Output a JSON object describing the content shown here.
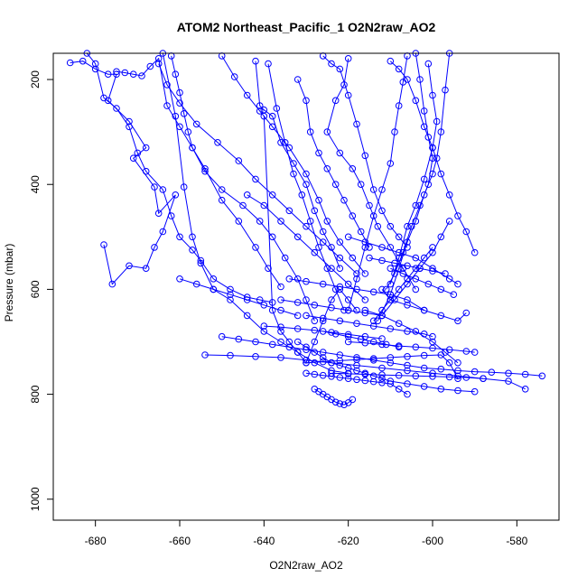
{
  "chart_data": {
    "type": "line",
    "title": "ATOM2 Northeast_Pacific_1 O2N2raw_AO2",
    "xlabel": "O2N2raw_AO2",
    "ylabel": "Pressure (mbar)",
    "xlim": [
      -690,
      -570
    ],
    "ylim": [
      1040,
      150
    ],
    "y_reversed": true,
    "grid": false,
    "x_ticks": [
      -680,
      -660,
      -640,
      -620,
      -600,
      -580
    ],
    "y_ticks": [
      200,
      400,
      600,
      800,
      1000
    ],
    "color": "#0000ff",
    "marker": "open-circle",
    "series": [
      {
        "x": [
          -686,
          -683,
          -680,
          -677,
          -675,
          -677,
          -672,
          -668,
          -671,
          -666,
          -665,
          -661,
          -664,
          -666,
          -668,
          -672,
          -676,
          -678
        ],
        "y": [
          168,
          165,
          180,
          190,
          190,
          240,
          280,
          330,
          350,
          405,
          455,
          420,
          490,
          520,
          560,
          555,
          590,
          515
        ]
      },
      {
        "x": [
          -682,
          -680,
          -678,
          -675,
          -672,
          -670,
          -668,
          -664,
          -662,
          -660,
          -657,
          -655,
          -652,
          -648,
          -644,
          -641,
          -638
        ],
        "y": [
          150,
          170,
          235,
          255,
          290,
          340,
          375,
          410,
          460,
          500,
          525,
          545,
          580,
          600,
          615,
          620,
          625
        ]
      },
      {
        "x": [
          -675,
          -673,
          -671,
          -669,
          -667,
          -665,
          -663,
          -660,
          -657,
          -654,
          -650,
          -646,
          -642,
          -639,
          -636
        ],
        "y": [
          185,
          187,
          190,
          193,
          175,
          160,
          250,
          290,
          330,
          370,
          430,
          470,
          520,
          560,
          595
        ]
      },
      {
        "x": [
          -662,
          -661,
          -660,
          -659,
          -658,
          -657,
          -654,
          -650,
          -645,
          -641,
          -638,
          -635,
          -632,
          -630,
          -628
        ],
        "y": [
          155,
          190,
          225,
          265,
          300,
          330,
          375,
          410,
          440,
          470,
          500,
          540,
          580,
          620,
          660
        ]
      },
      {
        "x": [
          -665,
          -663,
          -660,
          -656,
          -651,
          -646,
          -642,
          -638,
          -634,
          -630,
          -626,
          -622,
          -618
        ],
        "y": [
          170,
          210,
          245,
          285,
          320,
          355,
          390,
          420,
          450,
          480,
          510,
          540,
          570
        ]
      },
      {
        "x": [
          -664,
          -661,
          -659,
          -657,
          -655,
          -652,
          -648,
          -644,
          -640,
          -636,
          -632,
          -628,
          -624,
          -620
        ],
        "y": [
          150,
          270,
          405,
          500,
          550,
          600,
          620,
          650,
          680,
          700,
          720,
          740,
          755,
          760
        ]
      },
      {
        "x": [
          -650,
          -647,
          -644,
          -641,
          -638,
          -634,
          -630,
          -627,
          -625,
          -622,
          -619,
          -616
        ],
        "y": [
          155,
          195,
          230,
          260,
          290,
          330,
          380,
          430,
          470,
          510,
          540,
          570
        ]
      },
      {
        "x": [
          -642,
          -641,
          -640,
          -638,
          -636,
          -633,
          -630,
          -628,
          -626,
          -624,
          -622
        ],
        "y": [
          165,
          250,
          258,
          270,
          320,
          360,
          400,
          450,
          490,
          520,
          560
        ]
      },
      {
        "x": [
          -639,
          -637,
          -635,
          -633,
          -631,
          -629,
          -627,
          -625,
          -623,
          -621
        ],
        "y": [
          170,
          255,
          320,
          380,
          420,
          470,
          520,
          560,
          600,
          640
        ]
      },
      {
        "x": [
          -640,
          -638,
          -636,
          -634,
          -632,
          -630,
          -628,
          -626,
          -624,
          -622,
          -620,
          -618
        ],
        "y": [
          270,
          640,
          680,
          700,
          720,
          740,
          700,
          660,
          620,
          600,
          620,
          640
        ]
      },
      {
        "x": [
          -632,
          -630,
          -629,
          -627,
          -625,
          -623,
          -621,
          -619,
          -617,
          -615
        ],
        "y": [
          200,
          240,
          300,
          340,
          370,
          400,
          430,
          460,
          490,
          520
        ]
      },
      {
        "x": [
          -626,
          -624,
          -622,
          -620,
          -618,
          -616,
          -614,
          -612,
          -610,
          -608,
          -606
        ],
        "y": [
          155,
          170,
          180,
          230,
          285,
          345,
          410,
          450,
          480,
          500,
          520
        ]
      },
      {
        "x": [
          -620,
          -621,
          -623,
          -625,
          -622,
          -619,
          -617,
          -615,
          -613,
          -610,
          -607,
          -604
        ],
        "y": [
          160,
          210,
          240,
          300,
          340,
          370,
          400,
          440,
          480,
          520,
          560,
          600
        ]
      },
      {
        "x": [
          -610,
          -608,
          -606,
          -604,
          -602,
          -600,
          -598,
          -596,
          -594,
          -592,
          -590
        ],
        "y": [
          165,
          180,
          200,
          240,
          290,
          330,
          380,
          420,
          460,
          490,
          530
        ]
      },
      {
        "x": [
          -604,
          -603,
          -602,
          -601,
          -600,
          -601,
          -603,
          -605,
          -607,
          -609,
          -611
        ],
        "y": [
          150,
          200,
          260,
          310,
          350,
          400,
          440,
          480,
          530,
          570,
          600
        ]
      },
      {
        "x": [
          -601,
          -600,
          -599,
          -600,
          -602,
          -604,
          -606,
          -608,
          -610
        ],
        "y": [
          170,
          230,
          280,
          330,
          390,
          440,
          480,
          540,
          590
        ]
      },
      {
        "x": [
          -596,
          -597,
          -598,
          -599,
          -600,
          -602,
          -604,
          -606,
          -608,
          -610,
          -613
        ],
        "y": [
          150,
          220,
          300,
          350,
          380,
          420,
          470,
          510,
          560,
          610,
          660
        ]
      },
      {
        "x": [
          -606,
          -607,
          -608,
          -609,
          -610,
          -612,
          -614,
          -616,
          -618,
          -620
        ],
        "y": [
          155,
          205,
          250,
          300,
          360,
          410,
          460,
          520,
          580,
          640
        ]
      },
      {
        "x": [
          -650,
          -646,
          -642,
          -638,
          -634,
          -630,
          -626,
          -622,
          -618,
          -614,
          -610,
          -606,
          -602,
          -598,
          -594,
          -590,
          -586,
          -582,
          -578,
          -574
        ],
        "y": [
          690,
          695,
          700,
          705,
          710,
          715,
          720,
          725,
          730,
          735,
          740,
          745,
          750,
          752,
          755,
          757,
          758,
          760,
          762,
          765
        ]
      },
      {
        "x": [
          -654,
          -648,
          -642,
          -636,
          -630,
          -624,
          -618,
          -612,
          -606,
          -600,
          -594,
          -588,
          -582,
          -578
        ],
        "y": [
          725,
          726,
          728,
          730,
          735,
          740,
          745,
          750,
          755,
          760,
          765,
          770,
          775,
          790
        ]
      },
      {
        "x": [
          -632,
          -630,
          -628,
          -626,
          -624,
          -622,
          -620,
          -618,
          -616,
          -614,
          -612,
          -610,
          -606,
          -602,
          -598,
          -594,
          -590
        ],
        "y": [
          700,
          710,
          720,
          730,
          740,
          745,
          750,
          755,
          760,
          765,
          770,
          775,
          780,
          785,
          790,
          793,
          795
        ]
      },
      {
        "x": [
          -630,
          -628,
          -626,
          -624,
          -622,
          -620,
          -618,
          -616,
          -614,
          -612,
          -610,
          -608,
          -606
        ],
        "y": [
          760,
          762,
          764,
          766,
          768,
          770,
          772,
          774,
          776,
          778,
          780,
          790,
          800
        ]
      },
      {
        "x": [
          -628,
          -627,
          -626,
          -625,
          -624,
          -623,
          -622,
          -621,
          -620,
          -619
        ],
        "y": [
          790,
          795,
          800,
          805,
          810,
          815,
          818,
          820,
          816,
          810
        ]
      },
      {
        "x": [
          -624,
          -620,
          -616,
          -612,
          -608,
          -604,
          -600,
          -596,
          -592,
          -588
        ],
        "y": [
          760,
          761,
          762,
          763,
          764,
          765,
          766,
          767,
          768,
          770
        ]
      },
      {
        "x": [
          -630,
          -626,
          -622,
          -618,
          -614,
          -610,
          -606,
          -602,
          -598,
          -596,
          -594
        ],
        "y": [
          740,
          738,
          736,
          734,
          732,
          730,
          728,
          726,
          725,
          740,
          770
        ]
      },
      {
        "x": [
          -620,
          -616,
          -612,
          -608,
          -604,
          -600,
          -596,
          -592,
          -590
        ],
        "y": [
          700,
          702,
          705,
          708,
          710,
          712,
          715,
          718,
          720
        ]
      },
      {
        "x": [
          -616,
          -612,
          -608,
          -604,
          -600,
          -597,
          -594
        ],
        "y": [
          640,
          650,
          665,
          680,
          700,
          720,
          740
        ]
      },
      {
        "x": [
          -612,
          -610,
          -606,
          -602,
          -598,
          -594,
          -592
        ],
        "y": [
          600,
          620,
          630,
          640,
          650,
          660,
          645
        ]
      },
      {
        "x": [
          -634,
          -630,
          -626,
          -622,
          -618,
          -614,
          -610,
          -606,
          -602
        ],
        "y": [
          580,
          585,
          590,
          595,
          600,
          605,
          610,
          620,
          640
        ]
      },
      {
        "x": [
          -620,
          -616,
          -612,
          -608,
          -604,
          -600,
          -596,
          -594
        ],
        "y": [
          500,
          510,
          520,
          530,
          540,
          560,
          580,
          590
        ]
      },
      {
        "x": [
          -615,
          -612,
          -609,
          -606,
          -603,
          -600,
          -597
        ],
        "y": [
          540,
          545,
          550,
          555,
          560,
          565,
          570
        ]
      },
      {
        "x": [
          -630,
          -626,
          -622,
          -618,
          -614,
          -610,
          -606,
          -602,
          -600
        ],
        "y": [
          650,
          655,
          660,
          665,
          670,
          675,
          680,
          685,
          690
        ]
      },
      {
        "x": [
          -636,
          -632,
          -628,
          -624,
          -620,
          -616,
          -612
        ],
        "y": [
          620,
          625,
          630,
          635,
          640,
          645,
          650
        ]
      },
      {
        "x": [
          -626,
          -623,
          -620,
          -617,
          -614,
          -611,
          -608
        ],
        "y": [
          680,
          685,
          690,
          695,
          700,
          705,
          710
        ]
      },
      {
        "x": [
          -640,
          -636,
          -632,
          -628,
          -624,
          -620,
          -616,
          -612
        ],
        "y": [
          670,
          672,
          675,
          678,
          682,
          686,
          690,
          694
        ]
      },
      {
        "x": [
          -660,
          -656,
          -652,
          -648,
          -644,
          -640,
          -636,
          -632
        ],
        "y": [
          580,
          590,
          600,
          610,
          620,
          630,
          640,
          650
        ]
      },
      {
        "x": [
          -644,
          -640,
          -636,
          -632,
          -628,
          -624,
          -620,
          -616
        ],
        "y": [
          420,
          440,
          470,
          500,
          530,
          560,
          590,
          620
        ]
      },
      {
        "x": [
          -600,
          -602,
          -604,
          -606,
          -608,
          -610,
          -612,
          -614
        ],
        "y": [
          520,
          540,
          560,
          580,
          600,
          620,
          640,
          660
        ]
      },
      {
        "x": [
          -596,
          -598,
          -600,
          -603,
          -606,
          -609,
          -612
        ],
        "y": [
          470,
          500,
          530,
          560,
          590,
          620,
          650
        ]
      },
      {
        "x": [
          -610,
          -607,
          -604,
          -601,
          -598,
          -595
        ],
        "y": [
          560,
          570,
          580,
          590,
          600,
          610
        ]
      }
    ]
  }
}
